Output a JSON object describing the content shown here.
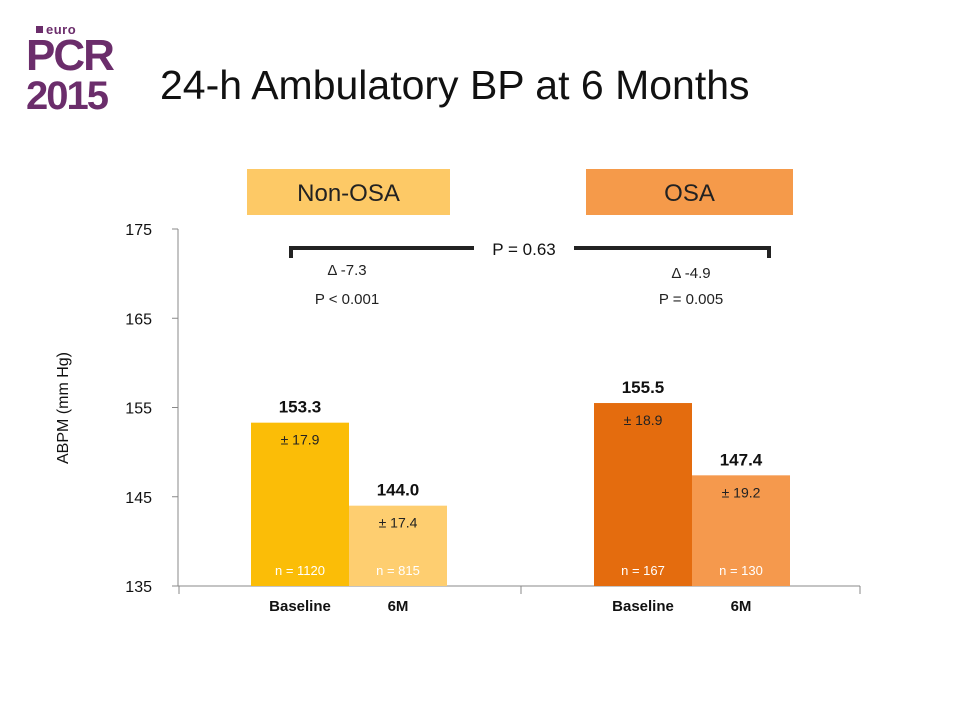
{
  "logo": {
    "euro": "euro",
    "pcr": "PCR",
    "year": "2015"
  },
  "title": "24-h Ambulatory BP at 6 Months",
  "chart_data": {
    "type": "bar",
    "ylabel": "ABPM (mm Hg)",
    "ylim": [
      135,
      175
    ],
    "yticks": [
      135,
      145,
      155,
      165,
      175
    ],
    "grid": false,
    "groups": [
      {
        "label": "Non-OSA",
        "header_color": "#fdc966",
        "delta": "Δ -7.3",
        "p_value": "P < 0.001",
        "bars": [
          {
            "category": "Baseline",
            "value": 153.3,
            "value_label": "153.3",
            "sd": "± 17.9",
            "n": "n = 1120",
            "color": "#fbbd07"
          },
          {
            "category": "6M",
            "value": 144.0,
            "value_label": "144.0",
            "sd": "± 17.4",
            "n": "n = 815",
            "color": "#fece70"
          }
        ]
      },
      {
        "label": "OSA",
        "header_color": "#f59a4a",
        "delta": "Δ -4.9",
        "p_value": "P = 0.005",
        "bars": [
          {
            "category": "Baseline",
            "value": 155.5,
            "value_label": "155.5",
            "sd": "± 18.9",
            "n": "n = 167",
            "color": "#e46c0e"
          },
          {
            "category": "6M",
            "value": 147.4,
            "value_label": "147.4",
            "sd": "± 19.2",
            "n": "n = 130",
            "color": "#f5994d"
          }
        ]
      }
    ],
    "comparison_label": "P = 0.63"
  }
}
